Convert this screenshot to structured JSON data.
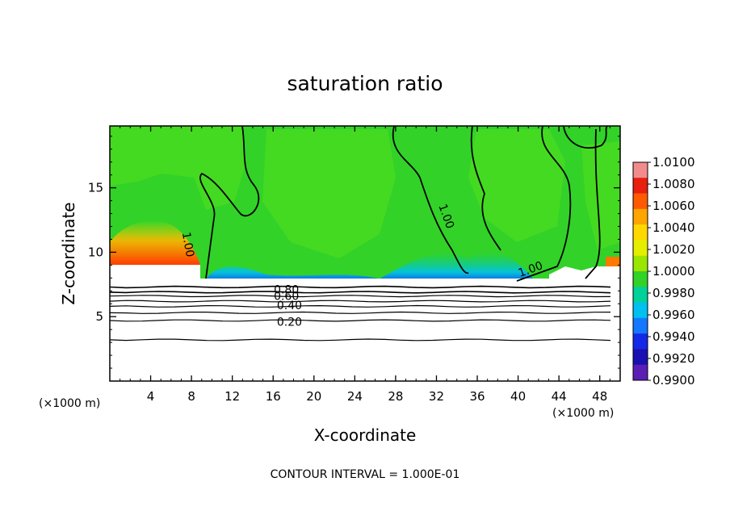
{
  "chart_data": {
    "type": "heatmap",
    "title": "saturation ratio",
    "xlabel": "X-coordinate",
    "ylabel": "Z-coordinate",
    "x_unit": "(×1000 m)",
    "y_unit": "(×1000 m)",
    "footnote": "CONTOUR INTERVAL = 1.000E-01",
    "xlim": [
      0,
      50
    ],
    "ylim": [
      0,
      19.8
    ],
    "x_ticks": [
      4,
      8,
      12,
      16,
      20,
      24,
      28,
      32,
      36,
      40,
      44,
      48
    ],
    "y_ticks": [
      5,
      10,
      15
    ],
    "colorbar": {
      "levels": [
        "1.0100",
        "1.0080",
        "1.0060",
        "1.0040",
        "1.0020",
        "1.0000",
        "0.9980",
        "0.9960",
        "0.9940",
        "0.9920",
        "0.9900"
      ],
      "band_colors": [
        "#f28c8c",
        "#e81e0e",
        "#ff5a00",
        "#ffa500",
        "#ffd800",
        "#e6ee00",
        "#9ae600",
        "#32d228",
        "#00d09a",
        "#00c0f0",
        "#1478ff",
        "#1428e8",
        "#1a0fb0",
        "#5a1eb4"
      ]
    },
    "contour_labels": [
      {
        "text": "0.80",
        "x": 17.3,
        "y": 7.1
      },
      {
        "text": "0.60",
        "x": 17.3,
        "y": 6.6
      },
      {
        "text": "0.40",
        "x": 17.6,
        "y": 5.9
      },
      {
        "text": "0.20",
        "x": 17.6,
        "y": 4.6
      },
      {
        "text": "1.00",
        "x": 7.7,
        "y": 10.6
      },
      {
        "text": "1.00",
        "x": 33.0,
        "y": 12.8
      },
      {
        "text": "1.00",
        "x": 41.2,
        "y": 8.7
      }
    ],
    "subsaturated_contours": [
      {
        "level": 0.8,
        "z": 7.3
      },
      {
        "level": 0.7,
        "z": 6.9
      },
      {
        "level": 0.6,
        "z": 6.6
      },
      {
        "level": 0.5,
        "z": 6.2
      },
      {
        "level": 0.4,
        "z": 5.8
      },
      {
        "level": 0.3,
        "z": 5.3
      },
      {
        "level": 0.2,
        "z": 4.7
      },
      {
        "level": 0.1,
        "z": 3.2
      }
    ]
  }
}
